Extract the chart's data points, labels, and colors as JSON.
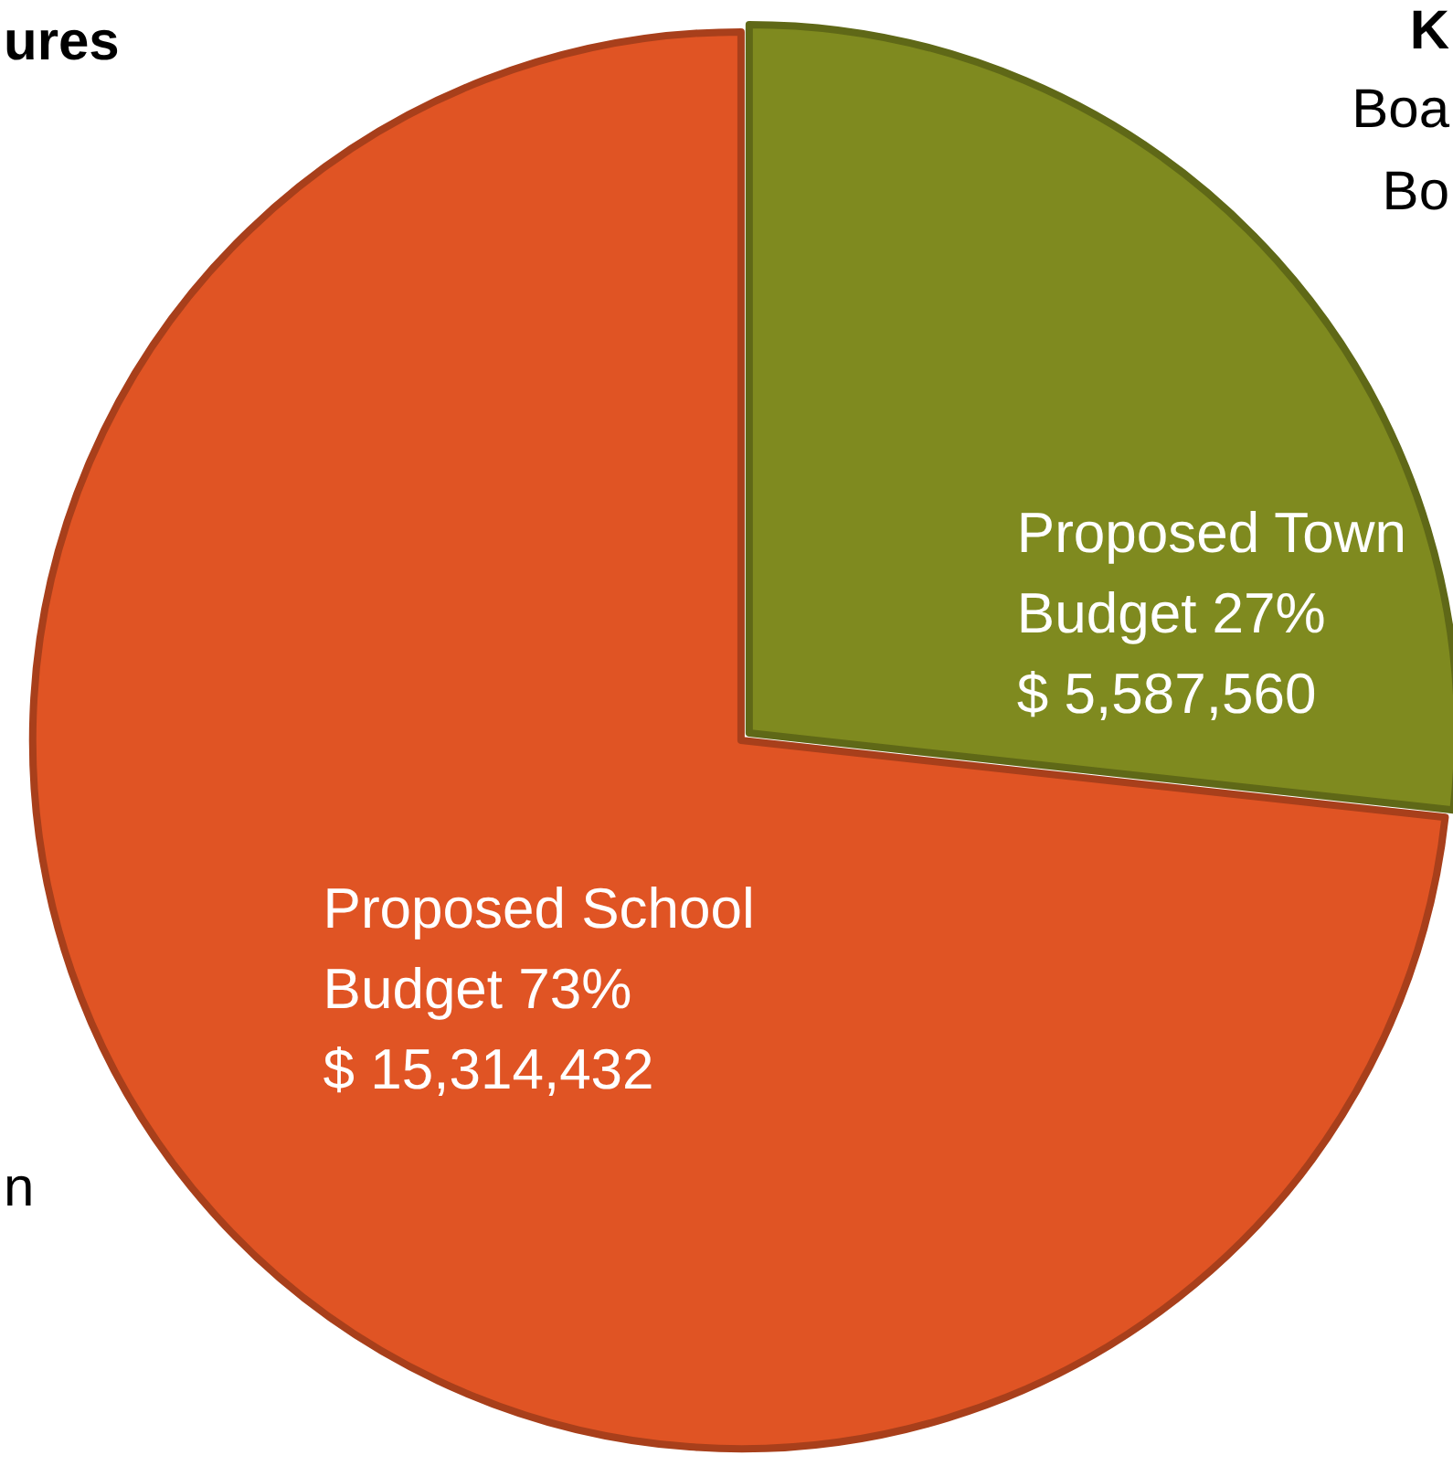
{
  "chart_data": {
    "type": "pie",
    "categories": [
      "Proposed Town Budget",
      "Proposed School Budget"
    ],
    "values": [
      5587560,
      15314432
    ],
    "colors": [
      "#7f8a1f",
      "#e05424"
    ],
    "value_labels": [
      "27%\n$ 5,587,560",
      "73%\n$ 15,314,432"
    ],
    "annotations": [
      "ures",
      "K",
      "Boa",
      "Bo",
      "n"
    ],
    "legend": false
  }
}
